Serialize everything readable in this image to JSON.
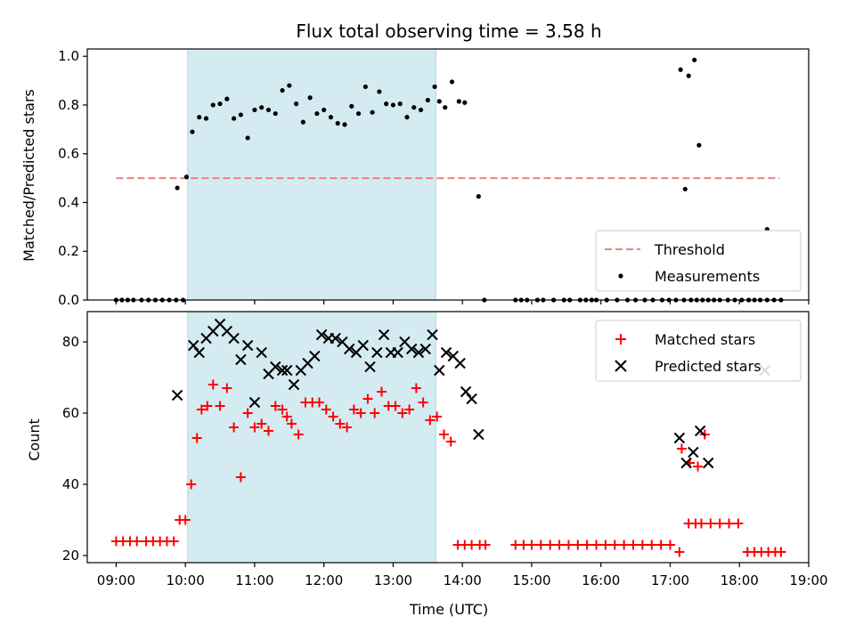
{
  "chart_data": [
    {
      "type": "scatter",
      "title": "Flux total observing time = 3.58 h",
      "ylabel": "Matched/Predicted stars",
      "xlim": [
        "08:35",
        "19:00"
      ],
      "ylim": [
        0,
        1.03
      ],
      "yticks": [
        0.0,
        0.2,
        0.4,
        0.6,
        0.8,
        1.0
      ],
      "yticklabels": [
        "0.0",
        "0.2",
        "0.4",
        "0.6",
        "0.8",
        "1.0"
      ],
      "shaded_region": {
        "start": "10:02",
        "end": "13:37",
        "color": "#d3ebf1"
      },
      "threshold": {
        "value": 0.5,
        "from": "09:00",
        "to": "18:35",
        "color": "#f08080"
      },
      "legend": {
        "position": "lower-right",
        "entries": [
          "Threshold",
          "Measurements"
        ]
      },
      "series": [
        {
          "name": "Measurements",
          "color": "#000000",
          "x": [
            "09:00",
            "09:05",
            "09:10",
            "09:15",
            "09:22",
            "09:28",
            "09:34",
            "09:40",
            "09:46",
            "09:52",
            "09:58",
            "09:53",
            "10:01",
            "10:06",
            "10:12",
            "10:18",
            "10:24",
            "10:30",
            "10:36",
            "10:42",
            "10:48",
            "10:54",
            "11:00",
            "11:06",
            "11:12",
            "11:18",
            "11:24",
            "11:30",
            "11:36",
            "11:42",
            "11:48",
            "11:54",
            "12:00",
            "12:06",
            "12:12",
            "12:18",
            "12:24",
            "12:30",
            "12:36",
            "12:42",
            "12:48",
            "12:54",
            "13:00",
            "13:06",
            "13:12",
            "13:18",
            "13:24",
            "13:30",
            "13:36",
            "13:40",
            "13:45",
            "13:51",
            "13:57",
            "14:02",
            "14:14",
            "14:19",
            "14:46",
            "14:51",
            "14:56",
            "15:05",
            "15:10",
            "15:19",
            "15:28",
            "15:33",
            "15:42",
            "15:47",
            "15:52",
            "15:56",
            "16:05",
            "16:14",
            "16:23",
            "16:30",
            "16:38",
            "16:45",
            "16:53",
            "16:59",
            "17:05",
            "17:12",
            "17:18",
            "17:23",
            "17:28",
            "17:33",
            "17:38",
            "17:43",
            "17:50",
            "17:56",
            "18:02",
            "18:08",
            "18:13",
            "18:18",
            "18:24",
            "18:30",
            "18:36",
            "17:09",
            "17:13",
            "17:16",
            "17:21",
            "17:25",
            "18:24"
          ],
          "y": [
            0,
            0,
            0,
            0,
            0,
            0,
            0,
            0,
            0,
            0,
            0,
            0.46,
            0.505,
            0.69,
            0.75,
            0.745,
            0.8,
            0.805,
            0.825,
            0.745,
            0.76,
            0.665,
            0.78,
            0.79,
            0.78,
            0.765,
            0.86,
            0.88,
            0.805,
            0.73,
            0.83,
            0.765,
            0.78,
            0.75,
            0.725,
            0.72,
            0.795,
            0.765,
            0.875,
            0.77,
            0.855,
            0.805,
            0.8,
            0.805,
            0.75,
            0.79,
            0.78,
            0.82,
            0.875,
            0.815,
            0.79,
            0.895,
            0.815,
            0.81,
            0.425,
            0,
            0,
            0,
            0,
            0,
            0,
            0,
            0,
            0,
            0,
            0,
            0,
            0,
            0,
            0,
            0,
            0,
            0,
            0,
            0,
            0,
            0,
            0,
            0,
            0,
            0,
            0,
            0,
            0,
            0,
            0,
            0,
            0,
            0,
            0,
            0,
            0,
            0,
            0.945,
            0.455,
            0.92,
            0.985,
            0.635,
            0.29
          ],
          "y_note": ""
        }
      ]
    },
    {
      "type": "scatter",
      "xlabel": "Time (UTC)",
      "ylabel": "Count",
      "xlim": [
        "08:35",
        "19:00"
      ],
      "ylim": [
        18,
        88.5
      ],
      "yticks": [
        20,
        40,
        60,
        80
      ],
      "yticklabels": [
        "20",
        "40",
        "60",
        "80"
      ],
      "xticks": [
        "09:00",
        "10:00",
        "11:00",
        "12:00",
        "13:00",
        "14:00",
        "15:00",
        "16:00",
        "17:00",
        "18:00",
        "19:00"
      ],
      "shaded_region": {
        "start": "10:02",
        "end": "13:37",
        "color": "#d3ebf1"
      },
      "legend": {
        "position": "upper-right",
        "entries": [
          "Matched stars",
          "Predicted stars"
        ]
      },
      "series": [
        {
          "name": "Matched stars",
          "color": "#ff0000",
          "marker": "plus",
          "x": [
            "09:00",
            "09:06",
            "09:12",
            "09:18",
            "09:26",
            "09:32",
            "09:38",
            "09:44",
            "09:50",
            "09:55",
            "10:00",
            "10:05",
            "10:10",
            "10:14",
            "10:19",
            "10:24",
            "10:30",
            "10:36",
            "10:42",
            "10:48",
            "10:54",
            "11:00",
            "11:06",
            "11:12",
            "11:18",
            "11:24",
            "11:28",
            "11:32",
            "11:38",
            "11:44",
            "11:50",
            "11:56",
            "12:02",
            "12:08",
            "12:14",
            "12:20",
            "12:26",
            "12:32",
            "12:38",
            "12:44",
            "12:50",
            "12:56",
            "13:02",
            "13:08",
            "13:14",
            "13:20",
            "13:26",
            "13:32",
            "13:38",
            "13:44",
            "13:50",
            "13:56",
            "14:02",
            "14:08",
            "14:15",
            "14:20",
            "14:46",
            "14:53",
            "15:00",
            "15:08",
            "15:16",
            "15:24",
            "15:32",
            "15:40",
            "15:48",
            "15:56",
            "16:04",
            "16:12",
            "16:20",
            "16:28",
            "16:36",
            "16:44",
            "16:52",
            "17:00",
            "17:08",
            "17:16",
            "17:22",
            "17:27",
            "17:35",
            "17:43",
            "17:51",
            "17:59",
            "18:07",
            "18:13",
            "18:19",
            "18:25",
            "18:31",
            "18:36",
            "17:10",
            "17:17",
            "17:24",
            "17:30"
          ],
          "y": [
            24,
            24,
            24,
            24,
            24,
            24,
            24,
            24,
            24,
            30,
            30,
            40,
            53,
            61,
            62,
            68,
            62,
            67,
            56,
            42,
            60,
            56,
            57,
            55,
            62,
            61,
            59,
            57,
            54,
            63,
            63,
            63,
            61,
            59,
            57,
            56,
            61,
            60,
            64,
            60,
            66,
            62,
            62,
            60,
            61,
            67,
            63,
            58,
            59,
            54,
            52,
            23,
            23,
            23,
            23,
            23,
            23,
            23,
            23,
            23,
            23,
            23,
            23,
            23,
            23,
            23,
            23,
            23,
            23,
            23,
            23,
            23,
            23,
            23,
            21,
            29,
            29,
            29,
            29,
            29,
            29,
            29,
            21,
            21,
            21,
            21,
            21,
            21,
            50,
            46,
            45,
            54
          ],
          "y_note": ""
        },
        {
          "name": "Predicted stars",
          "color": "#000000",
          "marker": "x",
          "x": [
            "09:53",
            "10:07",
            "10:12",
            "10:18",
            "10:24",
            "10:30",
            "10:36",
            "10:42",
            "10:48",
            "10:54",
            "11:00",
            "11:06",
            "11:12",
            "11:18",
            "11:24",
            "11:28",
            "11:34",
            "11:40",
            "11:46",
            "11:52",
            "11:58",
            "12:04",
            "12:10",
            "12:16",
            "12:22",
            "12:28",
            "12:34",
            "12:40",
            "12:46",
            "12:52",
            "12:58",
            "13:04",
            "13:10",
            "13:16",
            "13:22",
            "13:28",
            "13:34",
            "13:40",
            "13:46",
            "13:52",
            "13:58",
            "14:03",
            "14:08",
            "14:14",
            "17:08",
            "17:14",
            "17:20",
            "17:26",
            "17:33",
            "18:22"
          ],
          "y": [
            65,
            79,
            77,
            81,
            83,
            85,
            83,
            81,
            75,
            79,
            63,
            77,
            71,
            73,
            72,
            72,
            68,
            72,
            74,
            76,
            82,
            81,
            81,
            80,
            78,
            77,
            79,
            73,
            77,
            82,
            77,
            77,
            80,
            78,
            77,
            78,
            82,
            72,
            77,
            76,
            74,
            66,
            64,
            54,
            53,
            46,
            49,
            55,
            46,
            72
          ],
          "y_note": ""
        }
      ]
    }
  ]
}
